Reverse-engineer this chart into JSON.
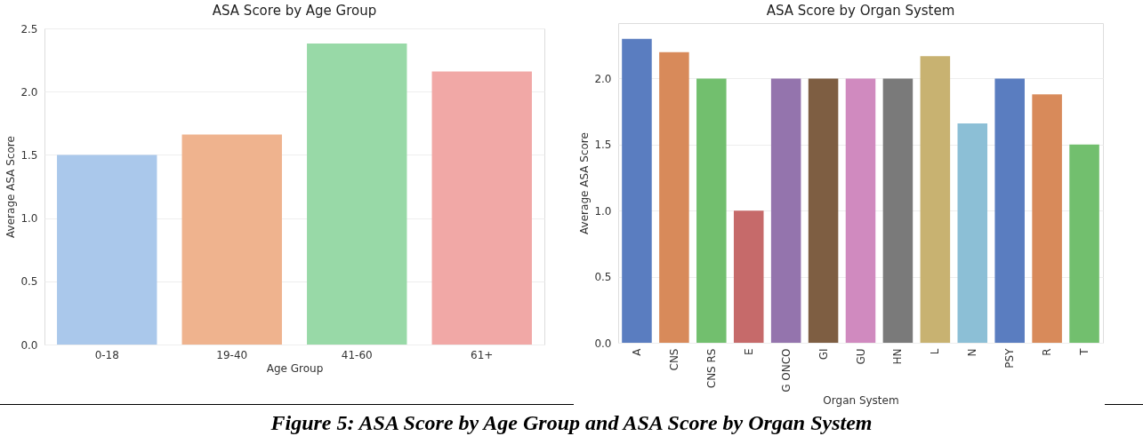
{
  "chart_data": [
    {
      "type": "bar",
      "title": "ASA Score by Age Group",
      "xlabel": "Age Group",
      "ylabel": "Average ASA Score",
      "categories": [
        "0-18",
        "19-40",
        "41-60",
        "61+"
      ],
      "values": [
        1.5,
        1.66,
        2.38,
        2.16
      ],
      "colors": [
        "#aac8eb",
        "#efb38e",
        "#98d9a7",
        "#f1a8a6"
      ],
      "ylim": [
        0,
        2.5
      ],
      "yticks": [
        {
          "value": 0,
          "label": "0.0"
        },
        0.5,
        {
          "value": 1,
          "label": "1.0"
        },
        1.5,
        {
          "value": 2,
          "label": "2.0"
        },
        2.5
      ],
      "grid": "y",
      "annotations": [
        "Figure 5: ASA Score by Age Group and ASA Score by Organ System"
      ]
    },
    {
      "type": "bar",
      "title": "ASA Score by Organ System",
      "xlabel": "Organ System",
      "ylabel": "Average ASA Score",
      "categories": [
        "A",
        "CNS",
        "CNS RS",
        "E",
        "G ONCO",
        "GI",
        "GU",
        "HN",
        "L",
        "N",
        "PSY",
        "R",
        "T"
      ],
      "values": [
        2.3,
        2.2,
        2.0,
        1.0,
        2.0,
        2.0,
        2.0,
        2.0,
        2.17,
        1.66,
        2.0,
        1.88,
        1.5
      ],
      "colors": [
        "#5a7dc0",
        "#d88a5a",
        "#72bf6e",
        "#c66a6a",
        "#9474ad",
        "#7e5e42",
        "#d08abf",
        "#7a7a7a",
        "#c8b271",
        "#8cbfd6",
        "#5a7dc0",
        "#d88a5a",
        "#72bf6e"
      ],
      "ylim": [
        0,
        2.42
      ],
      "yticks": [
        {
          "value": 0,
          "label": "0.0"
        },
        0.5,
        {
          "value": 1,
          "label": "1.0"
        },
        1.5,
        {
          "value": 2,
          "label": "2.0"
        }
      ],
      "grid": "y"
    }
  ]
}
